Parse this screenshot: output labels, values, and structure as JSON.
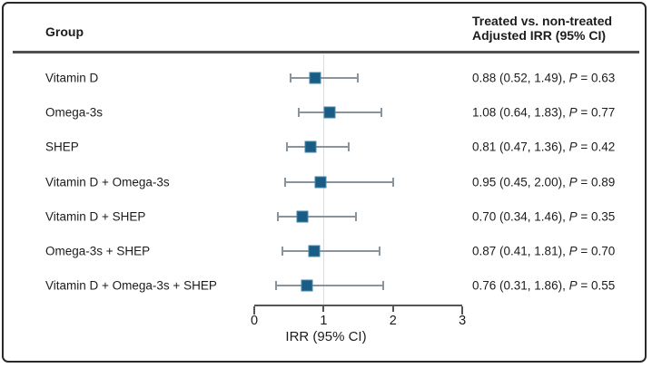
{
  "header": {
    "group": "Group",
    "right_line1": "Treated vs. non-treated",
    "right_line2": "Adjusted IRR (95% CI)"
  },
  "chart_data": {
    "type": "forest",
    "xlabel": "IRR (95% CI)",
    "xlim": [
      0,
      3
    ],
    "xticks": [
      0,
      1,
      2,
      3
    ],
    "reference_line": 1,
    "p_symbol": "P",
    "rows": [
      {
        "group": "Vitamin D",
        "irr": 0.88,
        "ci_low": 0.52,
        "ci_high": 1.49,
        "p": 0.63,
        "ci_text": "0.88 (0.52, 1.49), ",
        "p_text": "= 0.63"
      },
      {
        "group": "Omega-3s",
        "irr": 1.08,
        "ci_low": 0.64,
        "ci_high": 1.83,
        "p": 0.77,
        "ci_text": "1.08 (0.64, 1.83), ",
        "p_text": "= 0.77"
      },
      {
        "group": "SHEP",
        "irr": 0.81,
        "ci_low": 0.47,
        "ci_high": 1.36,
        "p": 0.42,
        "ci_text": "0.81 (0.47, 1.36), ",
        "p_text": "= 0.42"
      },
      {
        "group": "Vitamin D + Omega-3s",
        "irr": 0.95,
        "ci_low": 0.45,
        "ci_high": 2.0,
        "p": 0.89,
        "ci_text": "0.95 (0.45, 2.00), ",
        "p_text": "= 0.89"
      },
      {
        "group": "Vitamin D + SHEP",
        "irr": 0.7,
        "ci_low": 0.34,
        "ci_high": 1.46,
        "p": 0.35,
        "ci_text": "0.70 (0.34, 1.46), ",
        "p_text": "= 0.35"
      },
      {
        "group": "Omega-3s + SHEP",
        "irr": 0.87,
        "ci_low": 0.41,
        "ci_high": 1.81,
        "p": 0.7,
        "ci_text": "0.87 (0.41, 1.81), ",
        "p_text": "= 0.70"
      },
      {
        "group": "Vitamin D + Omega-3s + SHEP",
        "irr": 0.76,
        "ci_low": 0.31,
        "ci_high": 1.86,
        "p": 0.55,
        "ci_text": "0.76 (0.31, 1.86), ",
        "p_text": "= 0.55"
      }
    ]
  },
  "colors": {
    "marker_fill": "#1b5c85",
    "marker_border": "#4387ae",
    "whisker": "#8a949c",
    "reference_line": "#d9dddf",
    "axis": "#555555",
    "separator": "#4f4f4f",
    "frame": "#2a2a2a",
    "text": "#1c1c1c"
  }
}
